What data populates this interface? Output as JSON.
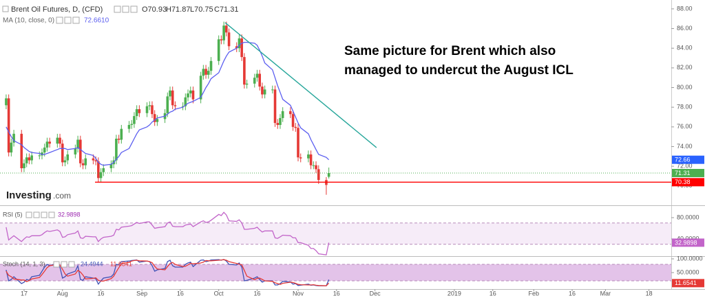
{
  "chart_data": [
    {
      "type": "candlestick",
      "title": "Brent Oil Futures, D, (CFD)",
      "ohlc_legend": [
        "O70.93",
        "H71.87",
        "L70.75",
        "C71.31"
      ],
      "annotation": [
        "Same picture for Brent which also",
        "managed to undercut the August ICL"
      ],
      "watermark": [
        "Investing",
        ".com"
      ],
      "x": [
        -7,
        -6,
        -5,
        -4,
        -1,
        0,
        1,
        2,
        3,
        6,
        7,
        8,
        9,
        10,
        13,
        14,
        15,
        16,
        17,
        20,
        21,
        22,
        23,
        24,
        27,
        28,
        29,
        30,
        31,
        34,
        35,
        36,
        37,
        38,
        41,
        42,
        43,
        44,
        45,
        48,
        49,
        50,
        51,
        52,
        55,
        56,
        57,
        58,
        59,
        62,
        63,
        64,
        65,
        66,
        69,
        70,
        71,
        72,
        73,
        76,
        77,
        78,
        79,
        80,
        83,
        84,
        85,
        86,
        87,
        90,
        91,
        92,
        93,
        94,
        97,
        98,
        99,
        100,
        101,
        104,
        105,
        106,
        107,
        108,
        111,
        112,
        113,
        114,
        115,
        118,
        119
      ],
      "open": [
        78.2,
        78.9,
        73.4,
        74.4,
        75.3,
        71.8,
        72.3,
        72.9,
        72.6,
        73.1,
        73.1,
        73.4,
        73.9,
        74.5,
        74.3,
        74.9,
        74.3,
        72.4,
        72.6,
        73.2,
        73.8,
        74.7,
        72.3,
        72.1,
        72.8,
        72.6,
        72.5,
        70.8,
        71.4,
        71.8,
        72.2,
        72.6,
        74.8,
        74.7,
        75.8,
        76.2,
        76.3,
        77.1,
        77.8,
        77.4,
        78.1,
        78.2,
        77.3,
        76.5,
        76.8,
        77.4,
        79.1,
        79.7,
        78.2,
        78.1,
        78.1,
        79.0,
        79.4,
        79.7,
        78.8,
        81.2,
        81.9,
        81.3,
        81.7,
        82.7,
        84.9,
        84.8,
        86.3,
        85.6,
        84.2,
        84.0,
        85.0,
        83.1,
        80.3,
        80.4,
        81.0,
        81.4,
        80.1,
        79.3,
        79.8,
        79.8,
        76.4,
        76.2,
        76.9,
        77.6,
        77.3,
        76.0,
        75.9,
        72.9,
        72.8,
        73.2,
        72.1,
        72.1,
        71.7,
        70.6,
        70.93
      ],
      "high": [
        79.3,
        79.3,
        74.8,
        75.7,
        75.7,
        72.7,
        73.3,
        73.3,
        73.5,
        73.5,
        73.8,
        74.3,
        74.9,
        74.9,
        75.3,
        75.3,
        74.7,
        73.0,
        73.6,
        74.2,
        75.1,
        75.1,
        72.7,
        73.2,
        73.2,
        73.0,
        72.9,
        71.8,
        72.2,
        72.6,
        73.0,
        75.2,
        75.2,
        76.2,
        76.6,
        76.7,
        77.5,
        78.2,
        78.2,
        78.5,
        78.6,
        78.6,
        77.7,
        77.2,
        77.8,
        79.5,
        80.1,
        80.1,
        78.6,
        78.5,
        79.4,
        79.8,
        80.1,
        80.1,
        81.6,
        82.3,
        82.3,
        82.1,
        83.1,
        85.3,
        85.3,
        86.7,
        86.7,
        86.0,
        84.6,
        85.4,
        85.4,
        83.5,
        80.8,
        81.4,
        81.8,
        81.8,
        80.5,
        80.2,
        80.2,
        80.2,
        76.8,
        77.3,
        78.0,
        78.0,
        77.7,
        76.4,
        76.3,
        73.3,
        73.6,
        73.6,
        72.5,
        72.5,
        72.1,
        70.9,
        71.87
      ],
      "low": [
        77.8,
        73.0,
        73.0,
        74.0,
        71.4,
        71.4,
        71.9,
        72.2,
        72.2,
        72.7,
        72.7,
        73.0,
        73.5,
        73.9,
        73.9,
        73.9,
        72.0,
        72.0,
        72.2,
        72.8,
        73.4,
        71.9,
        71.7,
        71.7,
        72.2,
        72.1,
        70.4,
        70.4,
        71.0,
        71.4,
        71.8,
        72.2,
        74.3,
        74.3,
        75.4,
        75.8,
        75.9,
        76.7,
        77.0,
        77.0,
        77.7,
        76.9,
        76.1,
        76.1,
        76.4,
        77.0,
        78.7,
        77.8,
        77.7,
        77.7,
        77.7,
        78.6,
        79.0,
        78.4,
        78.4,
        80.8,
        80.9,
        80.9,
        81.3,
        82.3,
        84.4,
        84.4,
        85.2,
        83.8,
        83.6,
        83.6,
        82.7,
        79.9,
        79.9,
        80.0,
        80.6,
        79.7,
        78.9,
        78.9,
        79.4,
        76.0,
        75.8,
        75.8,
        76.5,
        76.9,
        75.6,
        75.5,
        72.5,
        72.4,
        72.4,
        71.7,
        71.7,
        71.3,
        70.2,
        69.1,
        70.75
      ],
      "close": [
        78.9,
        73.4,
        74.4,
        75.3,
        71.8,
        72.3,
        72.9,
        72.6,
        73.1,
        73.1,
        73.4,
        73.9,
        74.5,
        74.3,
        74.9,
        74.3,
        72.4,
        72.6,
        73.2,
        73.8,
        74.7,
        72.3,
        72.1,
        72.8,
        72.6,
        72.5,
        70.8,
        71.4,
        71.8,
        72.2,
        72.6,
        74.8,
        74.7,
        75.8,
        76.2,
        76.3,
        77.1,
        77.8,
        77.4,
        78.1,
        78.2,
        77.3,
        76.5,
        76.8,
        77.4,
        79.1,
        79.7,
        78.2,
        78.1,
        78.1,
        79.0,
        79.4,
        79.7,
        78.8,
        81.2,
        81.9,
        81.3,
        81.7,
        82.7,
        84.9,
        84.8,
        86.3,
        85.6,
        84.2,
        84.0,
        85.0,
        83.1,
        80.3,
        80.4,
        81.0,
        81.4,
        80.1,
        79.3,
        79.8,
        79.8,
        76.4,
        76.2,
        76.9,
        77.6,
        77.3,
        76.0,
        75.9,
        72.9,
        72.8,
        73.2,
        72.1,
        72.1,
        71.7,
        70.6,
        70.1,
        71.31
      ],
      "up_color": "#4caf50",
      "down_color": "#e53935",
      "overlays": [
        {
          "name": "MA (10, close, 0)",
          "legend_value": "72.6610",
          "color": "#5b5ef0",
          "values": [
            76.0,
            75.5,
            75.0,
            74.6,
            74.2,
            73.9,
            73.7,
            73.5,
            73.4,
            73.3,
            73.2,
            73.2,
            73.3,
            73.4,
            73.7,
            73.8,
            73.8,
            73.8,
            73.7,
            73.8,
            73.9,
            73.7,
            73.5,
            73.3,
            73.1,
            72.8,
            72.4,
            72.2,
            72.1,
            72.2,
            72.4,
            72.7,
            73.0,
            73.4,
            73.8,
            74.3,
            74.8,
            75.3,
            75.7,
            76.0,
            76.2,
            76.5,
            76.7,
            76.9,
            77.1,
            77.3,
            77.5,
            77.6,
            77.8,
            78.0,
            78.2,
            78.4,
            78.5,
            78.6,
            79.0,
            79.5,
            80.0,
            80.4,
            80.9,
            81.5,
            82.1,
            82.7,
            83.2,
            83.6,
            84.0,
            84.3,
            84.5,
            84.6,
            84.6,
            84.5,
            84.3,
            83.8,
            83.2,
            82.5,
            81.8,
            81.0,
            80.2,
            79.5,
            78.8,
            78.2,
            77.6,
            77.0,
            76.4,
            75.9,
            75.3,
            74.7,
            74.2,
            73.7,
            73.2,
            72.9,
            72.66
          ]
        }
      ],
      "trendlines": [
        {
          "x": [
            78.5,
            137.6
          ],
          "y": [
            86.6,
            73.9
          ],
          "color": "#26a69a"
        },
        {
          "x": [
            27.7,
            252.7
          ],
          "y": [
            70.38,
            70.38
          ],
          "color": "#ff0000"
        }
      ],
      "price_labels": [
        {
          "value": 72.66,
          "color": "#2962ff"
        },
        {
          "value": 71.31,
          "color": "#4caf50",
          "line": "dotted"
        },
        {
          "value": 70.38,
          "color": "#ff0000"
        }
      ],
      "xlim": [
        -9.4,
        252.7
      ],
      "xticks": [
        {
          "value": 0,
          "label": "17"
        },
        {
          "value": 15,
          "label": "Aug"
        },
        {
          "value": 30,
          "label": "16"
        },
        {
          "value": 46,
          "label": "Sep"
        },
        {
          "value": 61,
          "label": "16"
        },
        {
          "value": 76,
          "label": "Oct"
        },
        {
          "value": 91,
          "label": "16"
        },
        {
          "value": 107,
          "label": "Nov"
        },
        {
          "value": 122,
          "label": "16"
        },
        {
          "value": 137,
          "label": "Dec"
        },
        {
          "value": 168,
          "label": "2019"
        },
        {
          "value": 183,
          "label": "16"
        },
        {
          "value": 199,
          "label": "Feb"
        },
        {
          "value": 214,
          "label": "16"
        },
        {
          "value": 227,
          "label": "Mar"
        },
        {
          "value": 244,
          "label": "18"
        }
      ],
      "ylim": [
        68.1,
        88.9
      ],
      "yticks": [
        {
          "value": 70,
          "label": "70.00"
        },
        {
          "value": 72,
          "label": "72.00"
        },
        {
          "value": 74,
          "label": "74.00"
        },
        {
          "value": 76,
          "label": "76.00"
        },
        {
          "value": 78,
          "label": "78.00"
        },
        {
          "value": 80,
          "label": "80.00"
        },
        {
          "value": 82,
          "label": "82.00"
        },
        {
          "value": 84,
          "label": "84.00"
        },
        {
          "value": 86,
          "label": "86.00"
        },
        {
          "value": 88,
          "label": "88.00"
        }
      ]
    },
    {
      "type": "line",
      "title": "RSI (5)",
      "series": [
        {
          "color": "#c264c9",
          "legend_value": "32.9898",
          "axis_label": true,
          "values": [
            62,
            38,
            42,
            46,
            35,
            40,
            44,
            43,
            46,
            46,
            48,
            52,
            55,
            54,
            57,
            54,
            43,
            44,
            48,
            51,
            55,
            42,
            41,
            45,
            44,
            44,
            35,
            40,
            43,
            45,
            47,
            58,
            57,
            62,
            64,
            65,
            68,
            71,
            69,
            72,
            72,
            66,
            60,
            61,
            63,
            70,
            72,
            64,
            63,
            63,
            66,
            67,
            68,
            63,
            72,
            74,
            71,
            72,
            75,
            86,
            84,
            90,
            85,
            74,
            73,
            76,
            70,
            58,
            58,
            60,
            62,
            57,
            53,
            55,
            55,
            42,
            41,
            44,
            47,
            46,
            42,
            42,
            33,
            33,
            28,
            22,
            22,
            18,
            12,
            10,
            32.9898
          ]
        }
      ],
      "band": [
        30,
        70
      ],
      "band_color": "rgba(156,39,176,0.09)",
      "ylim": [
        7.7,
        101.9
      ],
      "yticks": [
        {
          "value": 80,
          "label": "80.0000"
        },
        {
          "value": 40,
          "label": "40.0000"
        }
      ]
    },
    {
      "type": "line",
      "title": "Stoch (14, 1, 3)",
      "series": [
        {
          "color": "#3f51b5",
          "legend_value": "24.4944",
          "values": [
            60,
            20,
            25,
            35,
            10,
            15,
            25,
            22,
            35,
            40,
            55,
            70,
            80,
            75,
            85,
            70,
            30,
            35,
            45,
            55,
            75,
            25,
            22,
            35,
            30,
            28,
            8,
            20,
            30,
            35,
            45,
            80,
            78,
            90,
            92,
            94,
            95,
            96,
            88,
            92,
            90,
            75,
            55,
            60,
            65,
            90,
            95,
            75,
            70,
            70,
            80,
            85,
            88,
            72,
            95,
            96,
            90,
            92,
            96,
            97,
            95,
            98,
            92,
            80,
            78,
            85,
            70,
            20,
            22,
            30,
            35,
            25,
            15,
            20,
            20,
            5,
            5,
            10,
            18,
            16,
            8,
            10,
            3,
            4,
            8,
            4,
            5,
            3,
            2,
            2,
            24.4944
          ]
        },
        {
          "color": "#e53935",
          "legend_value": "11.6541",
          "axis_label": true,
          "values": [
            55,
            40,
            35,
            27,
            23,
            23,
            17,
            21,
            27,
            32,
            43,
            55,
            68,
            75,
            80,
            77,
            62,
            45,
            37,
            45,
            58,
            52,
            41,
            27,
            29,
            31,
            22,
            19,
            19,
            28,
            37,
            53,
            68,
            83,
            87,
            92,
            94,
            95,
            93,
            92,
            90,
            86,
            73,
            63,
            60,
            72,
            83,
            87,
            80,
            72,
            73,
            78,
            84,
            82,
            85,
            88,
            94,
            93,
            93,
            95,
            96,
            97,
            95,
            90,
            83,
            81,
            78,
            58,
            37,
            24,
            29,
            30,
            25,
            20,
            18,
            13,
            10,
            7,
            11,
            15,
            14,
            11,
            7,
            6,
            5,
            5,
            6,
            4,
            3,
            2,
            11.6541
          ]
        }
      ],
      "band": [
        20,
        80
      ],
      "band_color": "rgba(156,39,176,0.28)",
      "ylim": [
        -10,
        107.5
      ],
      "yticks": [
        {
          "value": 100,
          "label": "100.0000"
        },
        {
          "value": 50,
          "label": "50.0000"
        }
      ]
    }
  ]
}
